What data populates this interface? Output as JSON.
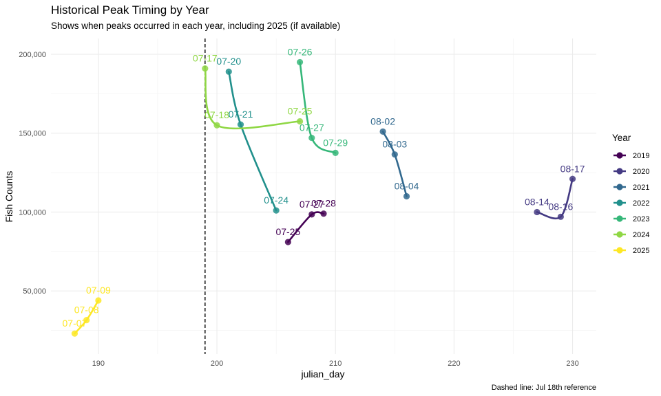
{
  "chart_data": {
    "type": "line",
    "title": "Historical Peak Timing by Year",
    "subtitle": "Shows when peaks occurred in each year, including 2025 (if available)",
    "xlabel": "julian_day",
    "ylabel": "Fish Counts",
    "caption": "Dashed line: Jul 18th reference",
    "xlim": [
      186,
      232
    ],
    "ylim": [
      10000,
      210000
    ],
    "x_ticks": [
      190,
      200,
      210,
      220,
      230
    ],
    "x_tick_labels": [
      "190",
      "200",
      "210",
      "220",
      "230"
    ],
    "y_ticks": [
      50000,
      100000,
      150000,
      200000
    ],
    "y_tick_labels": [
      "50,000",
      "100,000",
      "150,000",
      "200,000"
    ],
    "grid": true,
    "reference_line": {
      "x": 199,
      "style": "dashed"
    },
    "legend": {
      "title": "Year",
      "position": "right"
    },
    "series": [
      {
        "name": "2019",
        "color": "#440154",
        "points": [
          {
            "x": 206,
            "y": 81000,
            "label": "07-25"
          },
          {
            "x": 208,
            "y": 98500,
            "label": "07-27"
          },
          {
            "x": 209,
            "y": 99000,
            "label": "07-28"
          }
        ]
      },
      {
        "name": "2020",
        "color": "#443A83",
        "points": [
          {
            "x": 227,
            "y": 100000,
            "label": "08-14"
          },
          {
            "x": 229,
            "y": 97000,
            "label": "08-16"
          },
          {
            "x": 230,
            "y": 121000,
            "label": "08-17"
          }
        ]
      },
      {
        "name": "2021",
        "color": "#31688E",
        "points": [
          {
            "x": 214,
            "y": 151000,
            "label": "08-02"
          },
          {
            "x": 215,
            "y": 136500,
            "label": "08-03"
          },
          {
            "x": 216,
            "y": 110000,
            "label": "08-04"
          }
        ]
      },
      {
        "name": "2022",
        "color": "#21908C",
        "points": [
          {
            "x": 201,
            "y": 189000,
            "label": "07-20"
          },
          {
            "x": 202,
            "y": 155500,
            "label": "07-21"
          },
          {
            "x": 205,
            "y": 101000,
            "label": "07-24"
          }
        ]
      },
      {
        "name": "2023",
        "color": "#35B779",
        "points": [
          {
            "x": 207,
            "y": 195000,
            "label": "07-26"
          },
          {
            "x": 208,
            "y": 147000,
            "label": "07-27"
          },
          {
            "x": 210,
            "y": 137500,
            "label": "07-29"
          }
        ]
      },
      {
        "name": "2024",
        "color": "#8FD744",
        "points": [
          {
            "x": 199,
            "y": 191000,
            "label": "07-17"
          },
          {
            "x": 200,
            "y": 155000,
            "label": "07-18"
          },
          {
            "x": 207,
            "y": 157500,
            "label": "07-25"
          }
        ]
      },
      {
        "name": "2025",
        "color": "#FDE725",
        "points": [
          {
            "x": 188,
            "y": 23000,
            "label": "07-07"
          },
          {
            "x": 189,
            "y": 31500,
            "label": "07-08"
          },
          {
            "x": 190,
            "y": 44000,
            "label": "07-09"
          }
        ]
      }
    ]
  }
}
